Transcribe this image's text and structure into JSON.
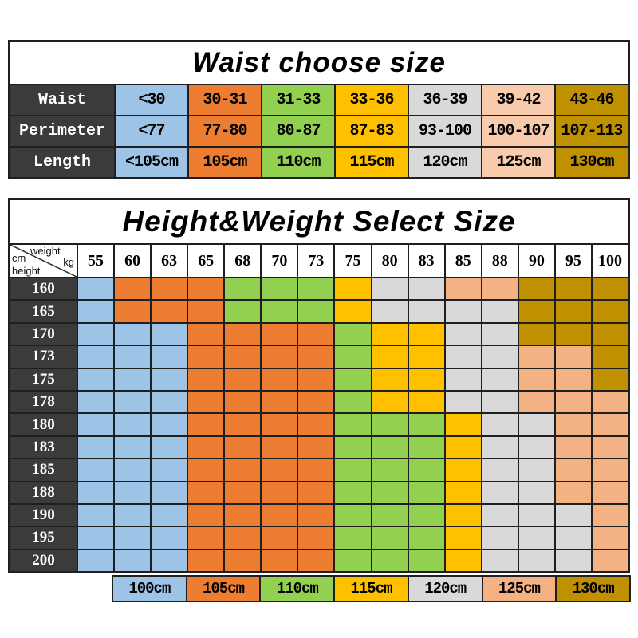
{
  "palette": {
    "border": "#1f1f1f",
    "header_dark": "#3b3b3b",
    "blue": "#9DC3E6",
    "orange": "#ED7D31",
    "green": "#92D050",
    "yellow": "#FFC000",
    "gray": "#D9D9D9",
    "peach": "#F4B183",
    "peach_light": "#F8CBAD",
    "gold": "#BF9000"
  },
  "chart_data": [
    {
      "type": "table",
      "title": "Waist choose size",
      "column_colors": [
        "blue",
        "orange",
        "green",
        "yellow",
        "gray",
        "peach_light",
        "gold"
      ],
      "rows": [
        {
          "label": "Waist",
          "values": [
            "<30",
            "30-31",
            "31-33",
            "33-36",
            "36-39",
            "39-42",
            "43-46"
          ]
        },
        {
          "label": "Perimeter",
          "values": [
            "<77",
            "77-80",
            "80-87",
            "87-83",
            "93-100",
            "100-107",
            "107-113"
          ]
        },
        {
          "label": "Length",
          "values": [
            "<105cm",
            "105cm",
            "110cm",
            "115cm",
            "120cm",
            "125cm",
            "130cm"
          ]
        }
      ]
    },
    {
      "type": "heatmap",
      "title": "Height&Weight Select Size",
      "corner": {
        "col_label": "weight",
        "col_unit": "kg",
        "row_unit": "cm",
        "row_label": "height"
      },
      "columns": [
        "55",
        "60",
        "63",
        "65",
        "68",
        "70",
        "73",
        "75",
        "80",
        "83",
        "85",
        "88",
        "90",
        "95",
        "100"
      ],
      "row_headers": [
        "160",
        "165",
        "170",
        "173",
        "175",
        "178",
        "180",
        "183",
        "185",
        "188",
        "190",
        "195",
        "200"
      ],
      "cells": [
        [
          "blue",
          "orange",
          "orange",
          "orange",
          "green",
          "green",
          "green",
          "yellow",
          "gray",
          "gray",
          "peach",
          "peach",
          "gold",
          "gold",
          "gold"
        ],
        [
          "blue",
          "orange",
          "orange",
          "orange",
          "green",
          "green",
          "green",
          "yellow",
          "gray",
          "gray",
          "gray",
          "gray",
          "gold",
          "gold",
          "gold"
        ],
        [
          "blue",
          "blue",
          "blue",
          "orange",
          "orange",
          "orange",
          "orange",
          "green",
          "yellow",
          "yellow",
          "gray",
          "gray",
          "gold",
          "gold",
          "gold"
        ],
        [
          "blue",
          "blue",
          "blue",
          "orange",
          "orange",
          "orange",
          "orange",
          "green",
          "yellow",
          "yellow",
          "gray",
          "gray",
          "peach",
          "peach",
          "gold"
        ],
        [
          "blue",
          "blue",
          "blue",
          "orange",
          "orange",
          "orange",
          "orange",
          "green",
          "yellow",
          "yellow",
          "gray",
          "gray",
          "peach",
          "peach",
          "gold"
        ],
        [
          "blue",
          "blue",
          "blue",
          "orange",
          "orange",
          "orange",
          "orange",
          "green",
          "yellow",
          "yellow",
          "gray",
          "gray",
          "peach",
          "peach",
          "peach"
        ],
        [
          "blue",
          "blue",
          "blue",
          "orange",
          "orange",
          "orange",
          "orange",
          "green",
          "green",
          "green",
          "yellow",
          "gray",
          "gray",
          "peach",
          "peach"
        ],
        [
          "blue",
          "blue",
          "blue",
          "orange",
          "orange",
          "orange",
          "orange",
          "green",
          "green",
          "green",
          "yellow",
          "gray",
          "gray",
          "peach",
          "peach"
        ],
        [
          "blue",
          "blue",
          "blue",
          "orange",
          "orange",
          "orange",
          "orange",
          "green",
          "green",
          "green",
          "yellow",
          "gray",
          "gray",
          "peach",
          "peach"
        ],
        [
          "blue",
          "blue",
          "blue",
          "orange",
          "orange",
          "orange",
          "orange",
          "green",
          "green",
          "green",
          "yellow",
          "gray",
          "gray",
          "peach",
          "peach"
        ],
        [
          "blue",
          "blue",
          "blue",
          "orange",
          "orange",
          "orange",
          "orange",
          "green",
          "green",
          "green",
          "yellow",
          "gray",
          "gray",
          "gray",
          "peach"
        ],
        [
          "blue",
          "blue",
          "blue",
          "orange",
          "orange",
          "orange",
          "orange",
          "green",
          "green",
          "green",
          "yellow",
          "gray",
          "gray",
          "gray",
          "peach"
        ],
        [
          "blue",
          "blue",
          "blue",
          "orange",
          "orange",
          "orange",
          "orange",
          "green",
          "green",
          "green",
          "yellow",
          "gray",
          "gray",
          "gray",
          "peach"
        ]
      ],
      "legend": [
        {
          "label": "100cm",
          "color": "blue"
        },
        {
          "label": "105cm",
          "color": "orange"
        },
        {
          "label": "110cm",
          "color": "green"
        },
        {
          "label": "115cm",
          "color": "yellow"
        },
        {
          "label": "120cm",
          "color": "gray"
        },
        {
          "label": "125cm",
          "color": "peach"
        },
        {
          "label": "130cm",
          "color": "gold"
        }
      ]
    }
  ]
}
